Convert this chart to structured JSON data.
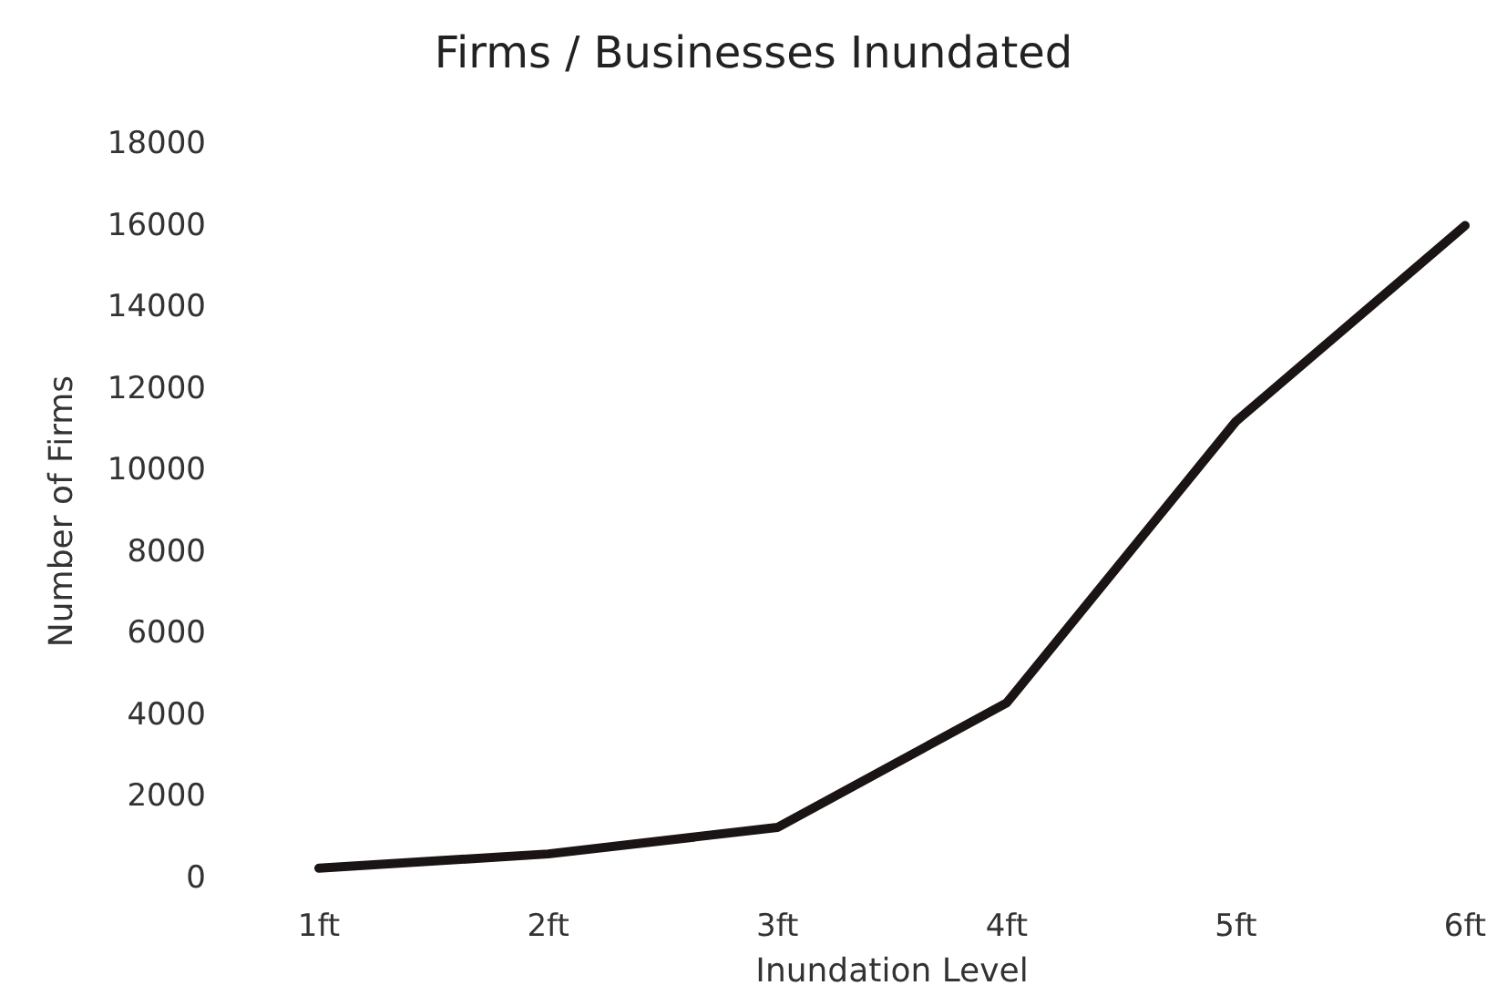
{
  "chart_data": {
    "type": "line",
    "title": "Firms / Businesses Inundated",
    "xlabel": "Inundation Level",
    "ylabel": "Number of Firms",
    "categories": [
      "1ft",
      "2ft",
      "3ft",
      "4ft",
      "5ft",
      "6ft"
    ],
    "series": [
      {
        "color": "#1a1414",
        "values": [
          250,
          600,
          1250,
          4300,
          11200,
          16000
        ]
      }
    ],
    "ylim": [
      0,
      18000
    ],
    "yticks": [
      0,
      2000,
      4000,
      6000,
      8000,
      10000,
      12000,
      14000,
      16000,
      18000
    ],
    "grid": false,
    "marker": "none",
    "line_style": "solid"
  }
}
